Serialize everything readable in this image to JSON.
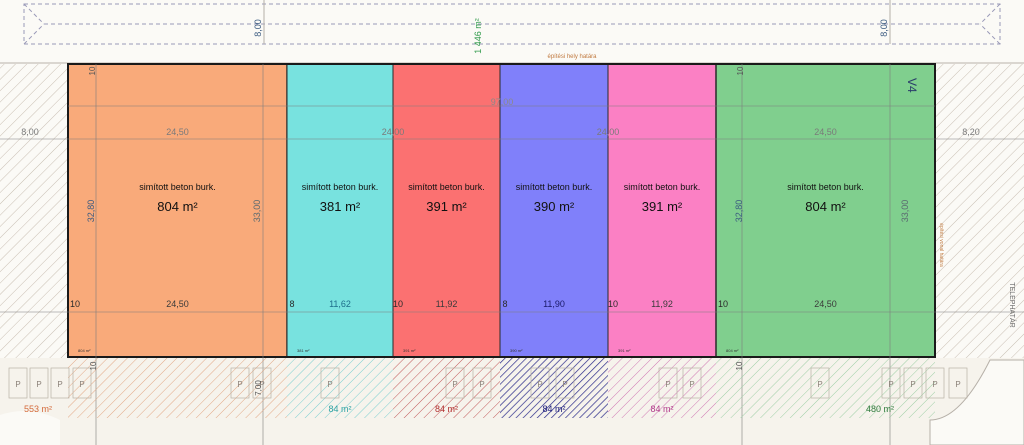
{
  "top_strip": {
    "area": "1 446 m²",
    "left_dim": "8,00",
    "right_dim": "8,00",
    "boundary_label": "építési hely határa"
  },
  "overall_dim": "97,00",
  "side_dims": {
    "left": "8,00",
    "right": "8,20"
  },
  "street_label": "TELEPHATÁR",
  "vertical_note": "építési vonal határa",
  "plot_label": "V4",
  "units": [
    {
      "id": "u1",
      "color": "#f9aa7a",
      "label": "simított beton burk.",
      "area": "804 m²",
      "top_dim": "24,50",
      "bottom_dim": "24,50",
      "left_dim": "32,80",
      "right_dim": "33,00",
      "corner_label": "10",
      "small_area": "804 m²",
      "parking_area": "553 m²"
    },
    {
      "id": "u2",
      "color": "#78e2df",
      "label": "simított beton burk.",
      "area": "381 m²",
      "top_dim": "24,00",
      "bottom_dim": "11,62",
      "corner_label": "8",
      "small_area": "381 m²",
      "parking_area": "84 m²"
    },
    {
      "id": "u3",
      "color": "#fb7171",
      "label": "simított beton burk.",
      "area": "391 m²",
      "bottom_dim": "11,92",
      "corner_label": "10",
      "small_area": "391 m²",
      "parking_area": "84 m²"
    },
    {
      "id": "u4",
      "color": "#8080fa",
      "label": "simított beton burk.",
      "area": "390 m²",
      "top_dim": "24,00",
      "bottom_dim": "11,90",
      "corner_label": "8",
      "small_area": "390 m²",
      "parking_area": "84 m²"
    },
    {
      "id": "u5",
      "color": "#fb80c4",
      "label": "simított beton burk.",
      "area": "391 m²",
      "bottom_dim": "11,92",
      "corner_label": "10",
      "small_area": "391 m²",
      "parking_area": "84 m²"
    },
    {
      "id": "u6",
      "color": "#80cf8e",
      "label": "simított beton burk.",
      "area": "804 m²",
      "top_dim": "24,50",
      "bottom_dim": "24,50",
      "left_dim": "32,80",
      "right_dim": "33,00",
      "corner_label": "10",
      "small_area": "804 m²",
      "parking_area": "480 m²"
    }
  ],
  "vertical_dims": {
    "top_a": "10",
    "top_b": "10",
    "mid_a": "10",
    "mid_b": "7,00",
    "bottom": "10"
  },
  "parking_symbol": "P"
}
